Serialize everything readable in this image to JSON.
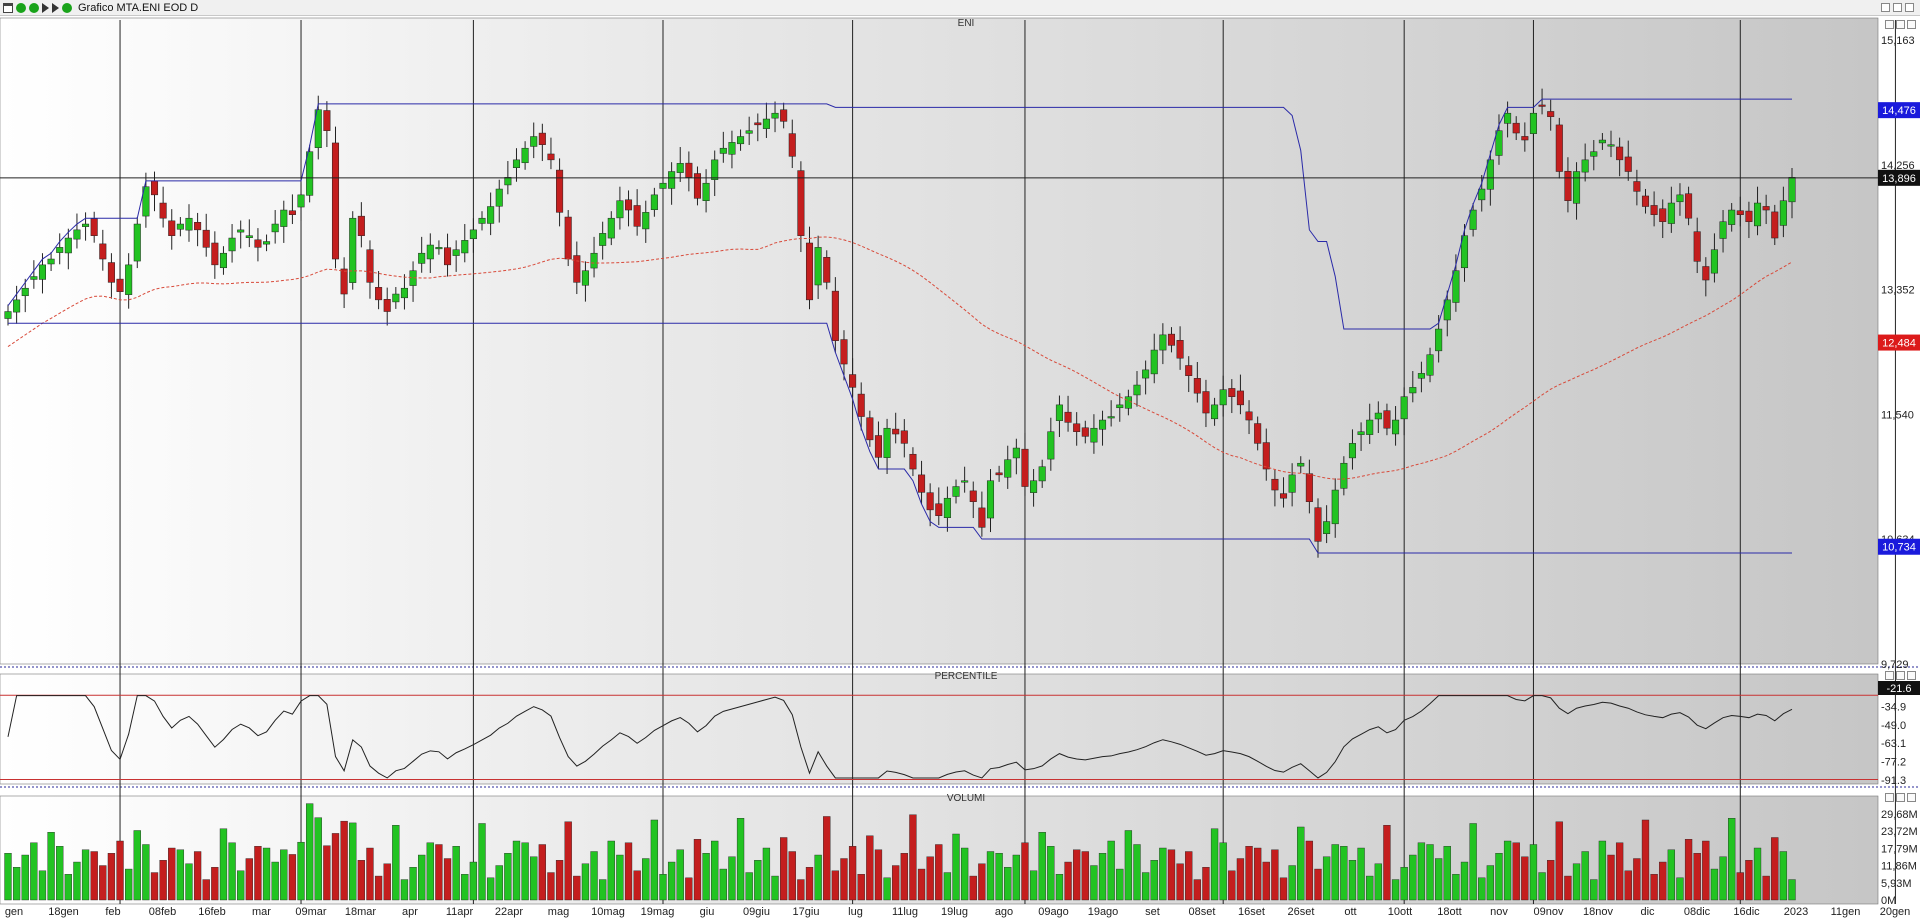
{
  "window": {
    "title": "Grafico MTA.ENI EOD D"
  },
  "panels": {
    "price": "ENI",
    "percentile": "PERCENTILE",
    "volume": "VOLUMI"
  },
  "colors": {
    "up": "#22c322",
    "down": "#c41e1e",
    "band": "#2a2aa8",
    "ma": "#d84a3a",
    "hline": "#222222",
    "pctl_band": "#c83232"
  },
  "icons": [
    "window-icon",
    "green-dot-icon",
    "green-dot-icon",
    "play-arrow-icon",
    "play-arrow-icon",
    "green-dot-icon"
  ],
  "chart_data": [
    {
      "type": "candlestick",
      "title": "ENI",
      "ylim": [
        9.729,
        15.163
      ],
      "y_ticks": [
        "15,163",
        "14,256",
        "13,352",
        "11,540",
        "10,634",
        "9,729"
      ],
      "x_ticks": [
        "gen",
        "18gen",
        "feb",
        "08feb",
        "16feb",
        "mar",
        "09mar",
        "18mar",
        "apr",
        "11apr",
        "22apr",
        "mag",
        "10mag",
        "19mag",
        "giu",
        "09giu",
        "17giu",
        "lug",
        "11lug",
        "19lug",
        "ago",
        "09ago",
        "19ago",
        "set",
        "08set",
        "16set",
        "26set",
        "ott",
        "10ott",
        "18ott",
        "nov",
        "09nov",
        "18nov",
        "dic",
        "08dic",
        "16dic",
        "2023",
        "11gen",
        "20gen"
      ],
      "markers": [
        {
          "label": "14,476",
          "value": 14.476,
          "color": "#1a1adc"
        },
        {
          "label": "13,896",
          "value": 13.896,
          "color": "#111111"
        },
        {
          "label": "12,484",
          "value": 12.484,
          "color": "#dc1a1a"
        },
        {
          "label": "10,734",
          "value": 10.734,
          "color": "#1a1adc"
        }
      ],
      "closes": [
        12.75,
        12.85,
        12.95,
        13.05,
        13.15,
        13.2,
        13.3,
        13.38,
        13.45,
        13.5,
        13.4,
        13.2,
        13.0,
        12.92,
        13.15,
        13.5,
        13.82,
        13.75,
        13.55,
        13.4,
        13.5,
        13.55,
        13.45,
        13.3,
        13.15,
        13.25,
        13.38,
        13.45,
        13.4,
        13.3,
        13.35,
        13.5,
        13.62,
        13.58,
        13.75,
        14.12,
        14.48,
        14.3,
        13.2,
        12.9,
        13.55,
        13.4,
        13.0,
        12.85,
        12.75,
        12.9,
        12.95,
        13.1,
        13.25,
        13.32,
        13.3,
        13.15,
        13.28,
        13.36,
        13.45,
        13.55,
        13.65,
        13.8,
        13.9,
        14.05,
        14.15,
        14.25,
        14.18,
        14.05,
        13.6,
        13.2,
        13.0,
        13.1,
        13.25,
        13.42,
        13.55,
        13.7,
        13.62,
        13.48,
        13.6,
        13.75,
        13.85,
        13.95,
        14.02,
        13.9,
        13.72,
        13.85,
        14.05,
        14.15,
        14.2,
        14.25,
        14.3,
        14.35,
        14.4,
        14.45,
        14.38,
        14.08,
        13.4,
        12.85,
        13.3,
        13.0,
        12.5,
        12.3,
        12.1,
        11.85,
        11.65,
        11.5,
        11.75,
        11.7,
        11.62,
        11.4,
        11.2,
        11.05,
        11.0,
        11.15,
        11.25,
        11.3,
        11.12,
        10.9,
        11.3,
        11.35,
        11.48,
        11.58,
        11.25,
        11.3,
        11.42,
        11.72,
        11.95,
        11.8,
        11.72,
        11.68,
        11.75,
        11.82,
        11.85,
        11.95,
        12.02,
        12.12,
        12.25,
        12.42,
        12.55,
        12.46,
        12.35,
        12.2,
        12.05,
        11.88,
        11.95,
        12.08,
        12.02,
        11.95,
        11.82,
        11.62,
        11.4,
        11.22,
        11.15,
        11.35,
        11.45,
        11.12,
        10.78,
        10.95,
        11.22,
        11.45,
        11.62,
        11.72,
        11.82,
        11.88,
        11.75,
        11.82,
        12.02,
        12.1,
        12.22,
        12.38,
        12.6,
        12.85,
        13.1,
        13.4,
        13.62,
        13.8,
        14.05,
        14.3,
        14.45,
        14.28,
        14.22,
        14.45,
        14.52,
        14.42,
        13.95,
        13.7,
        13.95,
        14.05,
        14.12,
        14.22,
        14.18,
        14.05,
        13.95,
        13.78,
        13.65,
        13.58,
        13.52,
        13.68,
        13.75,
        13.55,
        13.18,
        13.02,
        13.28,
        13.52,
        13.62,
        13.58,
        13.52,
        13.68,
        13.62,
        13.38,
        13.7,
        13.9
      ]
    },
    {
      "type": "line",
      "title": "PERCENTILE",
      "ylim": [
        -95,
        -14
      ],
      "y_ticks": [
        "-21.6",
        "-34.9",
        "-49.0",
        "-63.1",
        "-77.2",
        "-91.3"
      ],
      "band_values": [
        -21.6,
        -91.3
      ]
    },
    {
      "type": "bar",
      "title": "VOLUMI",
      "ylim": [
        0,
        31500000
      ],
      "y_ticks": [
        "29,68M",
        "23,72M",
        "17,79M",
        "11,86M",
        "5,93M",
        "0M"
      ]
    }
  ]
}
